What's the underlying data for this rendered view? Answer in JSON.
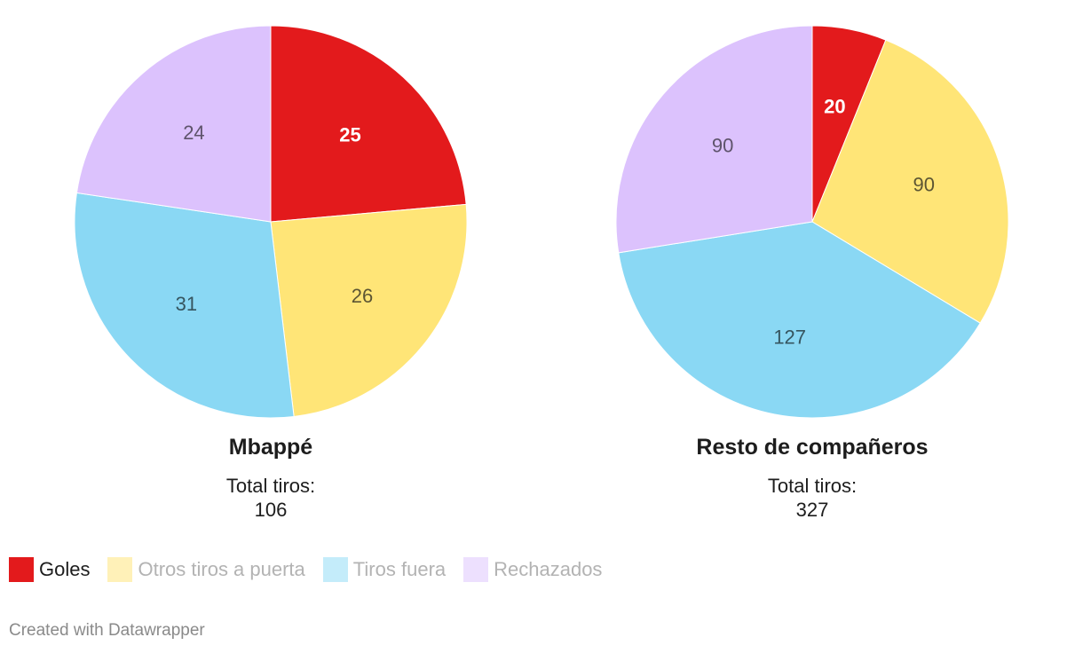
{
  "chart_data": [
    {
      "type": "pie",
      "title": "Mbappé",
      "subtitle_label": "Total tiros:",
      "total": "106",
      "categories": [
        "Goles",
        "Otros tiros a puerta",
        "Tiros fuera",
        "Rechazados"
      ],
      "values": [
        25,
        26,
        31,
        24
      ]
    },
    {
      "type": "pie",
      "title": "Resto de compañeros",
      "subtitle_label": "Total tiros:",
      "total": "327",
      "categories": [
        "Goles",
        "Otros tiros a puerta",
        "Tiros fuera",
        "Rechazados"
      ],
      "values": [
        20,
        90,
        127,
        90
      ]
    }
  ],
  "legend": {
    "items": [
      {
        "label": "Goles",
        "color": "#e31a1c",
        "swatch": "#e31a1c",
        "text_color": "#1d1d1d"
      },
      {
        "label": "Otros tiros a puerta",
        "color": "#ffe577",
        "swatch": "#fff1b8",
        "text_color": "#b3b3b3"
      },
      {
        "label": "Tiros fuera",
        "color": "#8ad8f4",
        "swatch": "#c4ecfa",
        "text_color": "#b3b3b3"
      },
      {
        "label": "Rechazados",
        "color": "#dcc2fd",
        "swatch": "#ede0fe",
        "text_color": "#b3b3b3"
      }
    ]
  },
  "colors": {
    "slices": [
      "#e31a1c",
      "#ffe577",
      "#8ad8f4",
      "#dcc2fd"
    ],
    "label_text": [
      "#ffffff",
      "#5c5533",
      "#36555f",
      "#5e536b"
    ]
  },
  "footer": {
    "credit": "Created with Datawrapper"
  }
}
